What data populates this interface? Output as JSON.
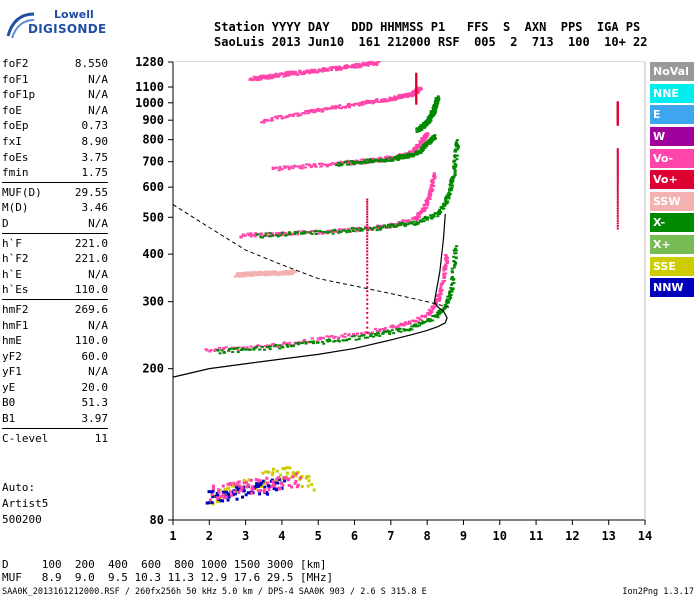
{
  "logo": {
    "brand_top": "Lowell",
    "brand_bottom": "DIGISONDE"
  },
  "header": {
    "line1": "Station YYYY DAY   DDD HHMMSS P1   FFS  S  AXN  PPS  IGA PS",
    "line2": "SaoLuis 2013 Jun10  161 212000 RSF  005  2  713  100  10+ 22"
  },
  "parameters": [
    [
      {
        "name": "foF2",
        "value": "8.550"
      },
      {
        "name": "foF1",
        "value": "N/A"
      },
      {
        "name": "foF1p",
        "value": "N/A"
      },
      {
        "name": "foE",
        "value": "N/A"
      },
      {
        "name": "foEp",
        "value": "0.73"
      },
      {
        "name": "fxI",
        "value": "8.90"
      },
      {
        "name": "foEs",
        "value": "3.75"
      },
      {
        "name": "fmin",
        "value": "1.75"
      }
    ],
    [
      {
        "name": "MUF(D)",
        "value": "29.55"
      },
      {
        "name": "M(D)",
        "value": "3.46"
      },
      {
        "name": "D",
        "value": "N/A"
      }
    ],
    [
      {
        "name": "h`F",
        "value": "221.0"
      },
      {
        "name": "h`F2",
        "value": "221.0"
      },
      {
        "name": "h`E",
        "value": "N/A"
      },
      {
        "name": "h`Es",
        "value": "110.0"
      }
    ],
    [
      {
        "name": "hmF2",
        "value": "269.6"
      },
      {
        "name": "hmF1",
        "value": "N/A"
      },
      {
        "name": "hmE",
        "value": "110.0"
      },
      {
        "name": "yF2",
        "value": "60.0"
      },
      {
        "name": "yF1",
        "value": "N/A"
      },
      {
        "name": "yE",
        "value": "20.0"
      },
      {
        "name": "B0",
        "value": "51.3"
      },
      {
        "name": "B1",
        "value": "3.97"
      }
    ],
    [
      {
        "name": "C-level",
        "value": "11"
      }
    ]
  ],
  "auto": {
    "line1": "Auto:",
    "line2": "Artist5",
    "line3": "500200"
  },
  "muf_table": {
    "line1": "D     100  200  400  600  800 1000 1500 3000 [km]",
    "line2": "MUF   8.9  9.0  9.5 10.3 11.3 12.9 17.6 29.5 [MHz]"
  },
  "footer": {
    "left": "SAA0K_2013161212000.RSF / 260fx256h 50 kHz 5.0 km / DPS-4 SAA0K 903 / 2.6 S 315.8 E",
    "right": "Ion2Png 1.3.17"
  },
  "legend": [
    {
      "label": "NoVal",
      "bg": "#999999",
      "fg": "#ffffff"
    },
    {
      "label": "NNE",
      "bg": "#00eeee",
      "fg": "#ffffff"
    },
    {
      "label": "E",
      "bg": "#3ea6ee",
      "fg": "#ffffff"
    },
    {
      "label": "W",
      "bg": "#a0009e",
      "fg": "#ffffff"
    },
    {
      "label": "Vo-",
      "bg": "#ff44aa",
      "fg": "#ffffff"
    },
    {
      "label": "Vo+",
      "bg": "#dd0033",
      "fg": "#ffffff"
    },
    {
      "label": "SSW",
      "bg": "#f4b1b1",
      "fg": "#ffffff"
    },
    {
      "label": "X-",
      "bg": "#008800",
      "fg": "#ffffff"
    },
    {
      "label": "X+",
      "bg": "#77bb55",
      "fg": "#ffffff"
    },
    {
      "label": "SSE",
      "bg": "#cccc00",
      "fg": "#ffffff"
    },
    {
      "label": "NNW",
      "bg": "#0000bb",
      "fg": "#ffffff"
    }
  ],
  "chart_data": {
    "type": "scatter",
    "title": "",
    "xlabel": "",
    "ylabel": "",
    "xlim": [
      1,
      14
    ],
    "x_ticks": [
      1,
      2,
      3,
      4,
      5,
      6,
      7,
      8,
      9,
      10,
      11,
      12,
      13,
      14
    ],
    "y_scale": "log",
    "ylim": [
      80,
      1280
    ],
    "y_ticks": [
      80,
      200,
      300,
      400,
      500,
      600,
      700,
      800,
      900,
      1000,
      1100,
      1280
    ],
    "grid": true,
    "series": [
      {
        "name": "Vo-",
        "color": "#ff44aa",
        "kind": "trace",
        "x": [
          1.9,
          3,
          4,
          5,
          6,
          7,
          7.5,
          8,
          8.2,
          8.35,
          8.45,
          8.5
        ],
        "y": [
          225,
          228,
          233,
          240,
          248,
          258,
          265,
          280,
          298,
          320,
          360,
          400
        ]
      },
      {
        "name": "X-",
        "color": "#008800",
        "kind": "trace",
        "x": [
          2.2,
          3.5,
          5,
          6.5,
          7.5,
          8.2,
          8.5,
          8.65,
          8.75
        ],
        "y": [
          223,
          228,
          236,
          246,
          257,
          275,
          296,
          330,
          420
        ]
      },
      {
        "name": "Vo-",
        "color": "#ff44aa",
        "kind": "trace",
        "x": [
          2.8,
          4,
          5.5,
          6.8,
          7.6,
          7.9,
          8.05,
          8.15
        ],
        "y": [
          450,
          455,
          462,
          475,
          495,
          530,
          580,
          650
        ]
      },
      {
        "name": "X-",
        "color": "#008800",
        "kind": "trace",
        "x": [
          3.3,
          5,
          6.5,
          7.6,
          8.3,
          8.55,
          8.7,
          8.8
        ],
        "y": [
          450,
          458,
          470,
          485,
          515,
          570,
          650,
          800
        ]
      },
      {
        "name": "Vo-",
        "color": "#ff44aa",
        "kind": "trace",
        "x": [
          3.7,
          5,
          6.2,
          7,
          7.55,
          7.8,
          7.95
        ],
        "y": [
          672,
          690,
          705,
          720,
          745,
          790,
          830
        ]
      },
      {
        "name": "X-",
        "color": "#008800",
        "kind": "trace",
        "x": [
          5.5,
          7,
          7.7,
          8,
          8.15
        ],
        "y": [
          695,
          715,
          740,
          790,
          820
        ]
      },
      {
        "name": "Vo-",
        "color": "#ff44aa",
        "kind": "trace",
        "x": [
          3.4,
          4.8,
          6,
          7,
          7.55,
          7.8
        ],
        "y": [
          900,
          955,
          995,
          1030,
          1060,
          1100
        ]
      },
      {
        "name": "X-",
        "color": "#008800",
        "kind": "trace",
        "x": [
          7.7,
          8,
          8.15,
          8.25
        ],
        "y": [
          850,
          900,
          960,
          1040
        ]
      },
      {
        "name": "Vo-",
        "color": "#ff44aa",
        "kind": "trace",
        "x": [
          3.1,
          4.2,
          5.5,
          6.6
        ],
        "y": [
          1160,
          1200,
          1240,
          1280
        ]
      },
      {
        "name": "SSW",
        "color": "#f4b1b1",
        "kind": "trace",
        "x": [
          2.7,
          3.5,
          4.3
        ],
        "y": [
          355,
          358,
          360
        ]
      },
      {
        "name": "Vo+",
        "color": "#dd0033",
        "kind": "vertical",
        "x": [
          13.25,
          13.25
        ],
        "y": [
          470,
          760
        ]
      },
      {
        "name": "Vo+",
        "color": "#dd0033",
        "kind": "vertical",
        "x": [
          13.25,
          13.25
        ],
        "y": [
          880,
          1010
        ]
      },
      {
        "name": "Vo+",
        "color": "#dd0033",
        "kind": "vertical",
        "x": [
          6.35,
          6.35
        ],
        "y": [
          250,
          560
        ]
      },
      {
        "name": "Vo+",
        "color": "#dd0033",
        "kind": "vertical",
        "x": [
          7.7,
          7.7
        ],
        "y": [
          1000,
          1200
        ]
      },
      {
        "name": "SSE",
        "color": "#cccc00",
        "kind": "band",
        "x": [
          2,
          3,
          4,
          4.8
        ],
        "y": [
          92,
          100,
          108,
          100
        ]
      },
      {
        "name": "NNW",
        "color": "#0000bb",
        "kind": "band",
        "x": [
          1.9,
          3,
          4
        ],
        "y": [
          92,
          96,
          100
        ]
      },
      {
        "name": "Vo-",
        "color": "#ff44aa",
        "kind": "band",
        "x": [
          2,
          3.2,
          4.5
        ],
        "y": [
          95,
          99,
          103
        ]
      }
    ],
    "profile_curve": {
      "x": [
        1,
        2,
        3,
        4,
        5,
        6,
        7,
        7.6,
        8,
        8.3,
        8.5,
        8.55,
        8.45,
        8.3,
        8.2,
        8.35,
        8.45,
        8.5
      ],
      "y": [
        190,
        200,
        206,
        212,
        218,
        226,
        238,
        246,
        252,
        258,
        264,
        272,
        283,
        290,
        300,
        360,
        440,
        510
      ]
    },
    "dashed_curve": {
      "x": [
        1,
        2,
        3,
        4,
        5,
        6,
        7,
        8,
        8.6
      ],
      "y": [
        540,
        470,
        410,
        375,
        345,
        330,
        315,
        300,
        290
      ]
    }
  }
}
